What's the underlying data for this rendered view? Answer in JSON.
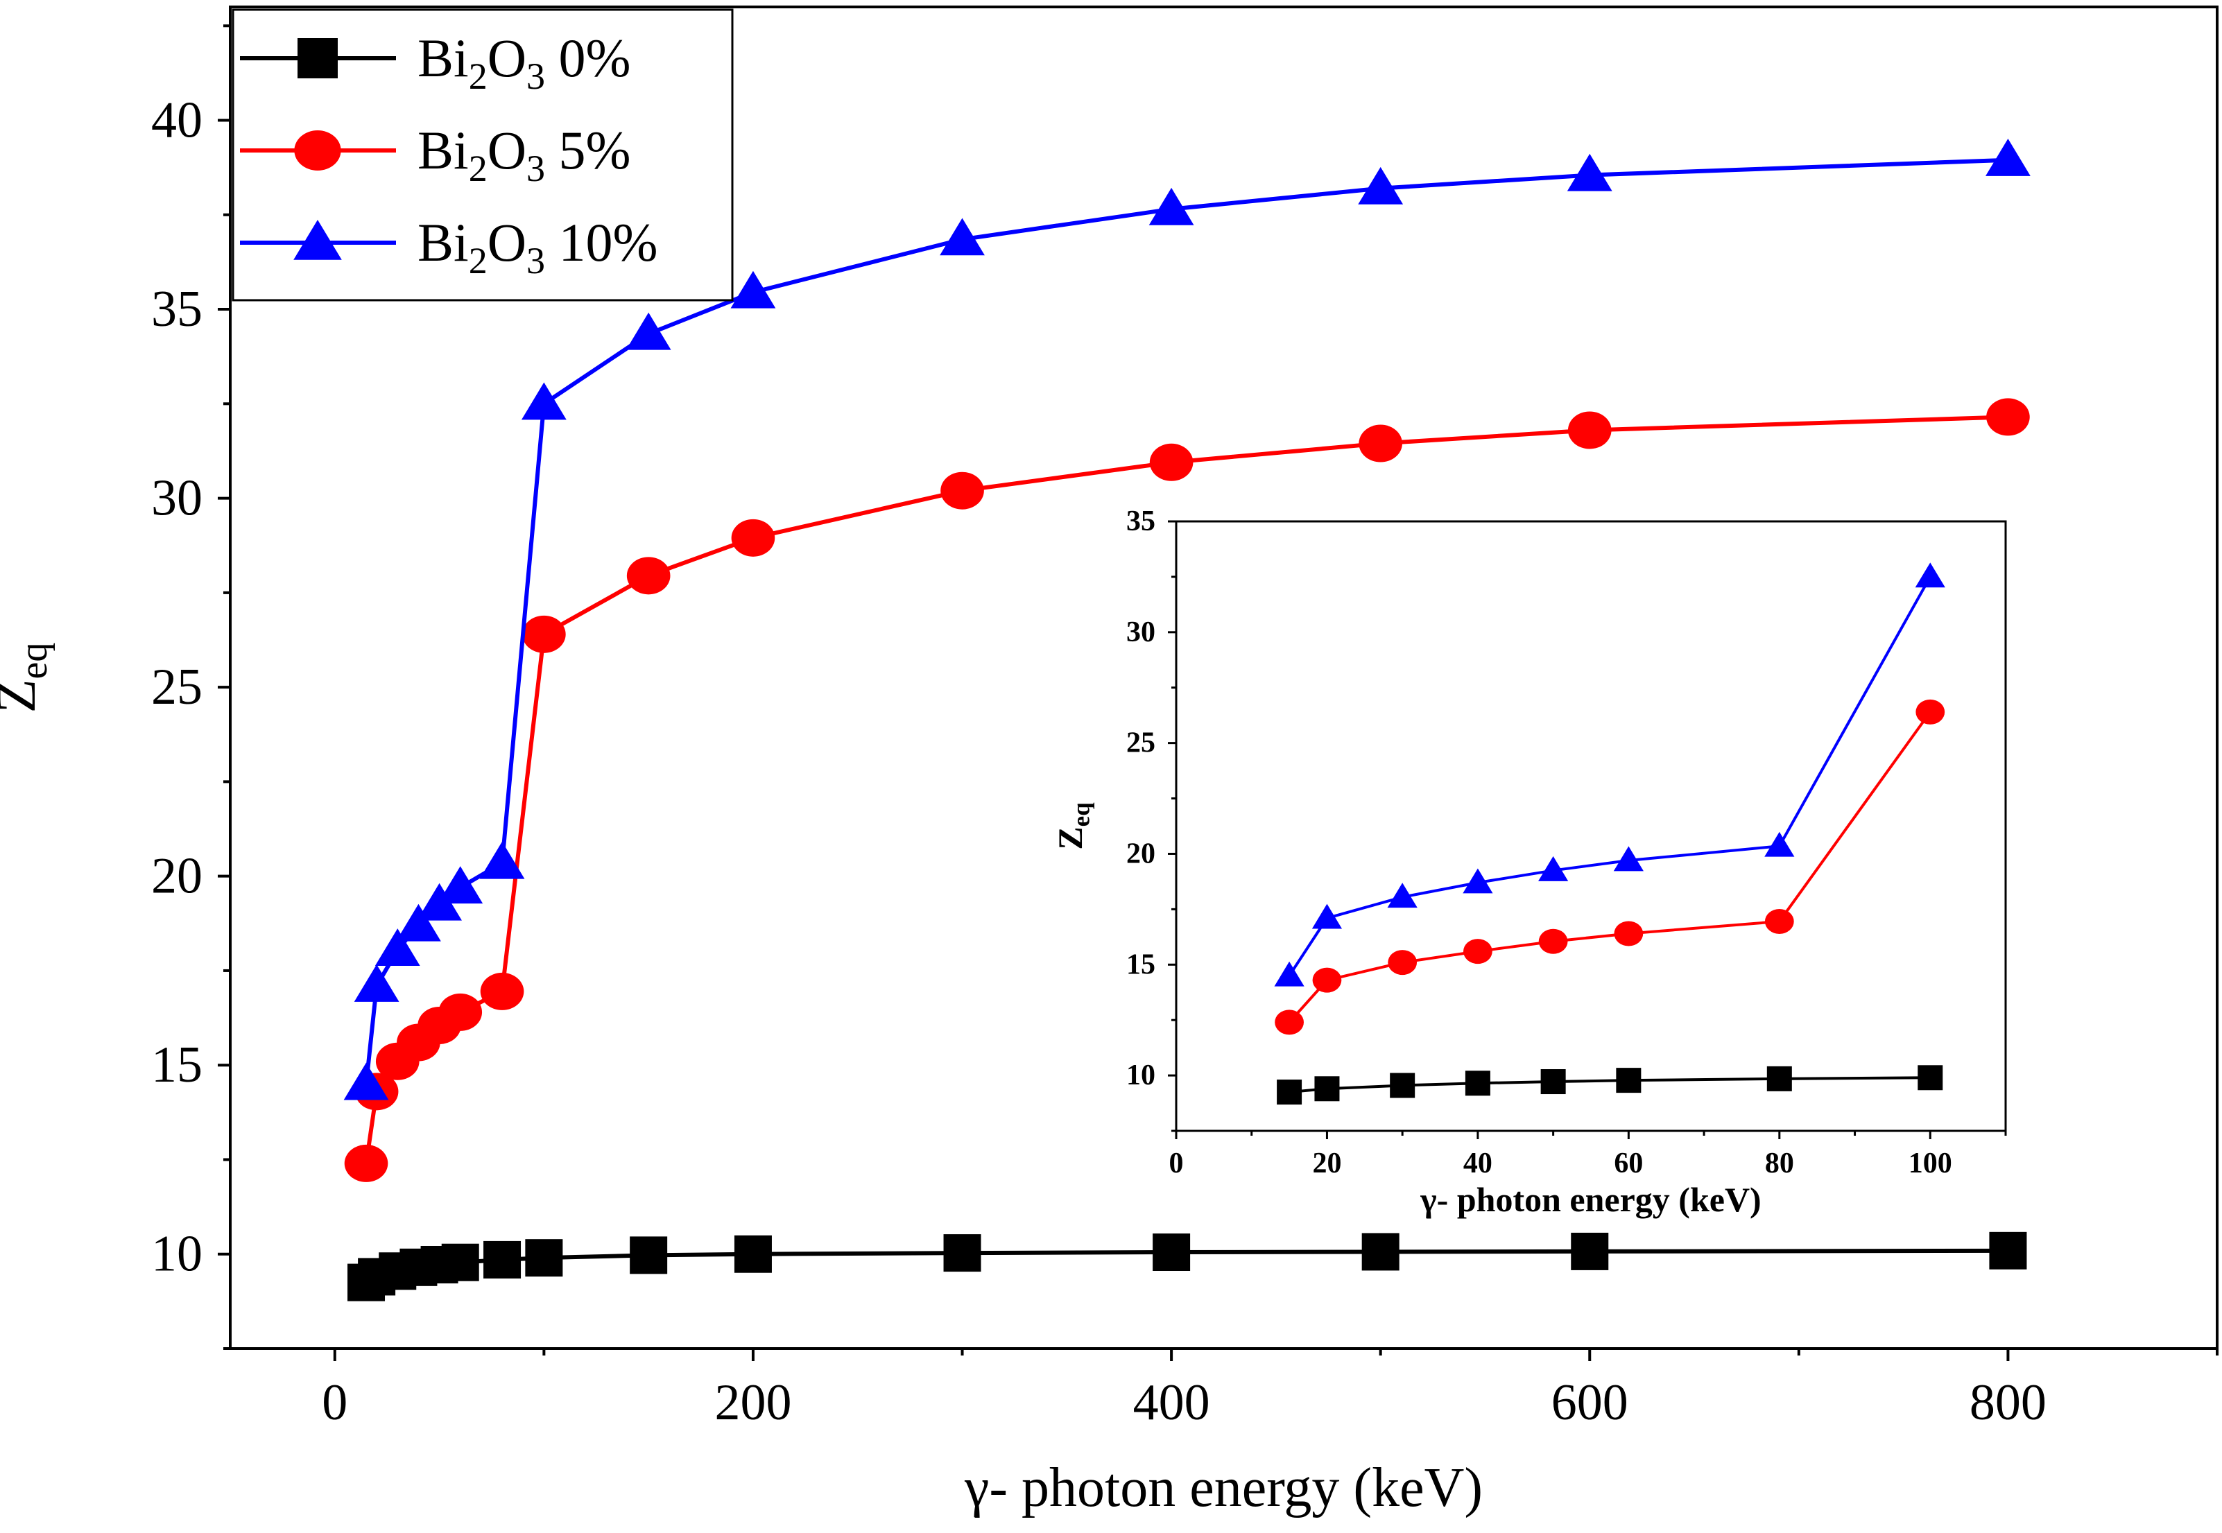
{
  "chart_data": [
    {
      "id": "main",
      "type": "line",
      "title": "",
      "xlabel": "γ- photon energy (keV)",
      "ylabel": "Z",
      "ylabel_subscript": "eq",
      "xlim": [
        -50,
        900
      ],
      "ylim": [
        7.5,
        43
      ],
      "xticks": [
        0,
        200,
        400,
        600,
        800
      ],
      "xtick_labels": [
        "0",
        "200",
        "400",
        "600",
        "800"
      ],
      "yticks": [
        10,
        15,
        20,
        25,
        30,
        35,
        40
      ],
      "ytick_labels": [
        "10",
        "15",
        "20",
        "25",
        "30",
        "35",
        "40"
      ],
      "grid": false,
      "legend_position": "top-left",
      "x": [
        15,
        20,
        30,
        40,
        50,
        60,
        80,
        100,
        150,
        200,
        300,
        400,
        500,
        600,
        800
      ],
      "series": [
        {
          "name": "Bi2O3 0%",
          "legend_parts": [
            "Bi",
            "2",
            "O",
            "3",
            " 0%"
          ],
          "color": "#000000",
          "marker": "square",
          "values": [
            9.25,
            9.4,
            9.55,
            9.65,
            9.72,
            9.78,
            9.85,
            9.9,
            9.97,
            10.0,
            10.03,
            10.05,
            10.06,
            10.07,
            10.09
          ]
        },
        {
          "name": "Bi2O3 5%",
          "legend_parts": [
            "Bi",
            "2",
            "O",
            "3",
            " 5%"
          ],
          "color": "#ff0000",
          "marker": "circle",
          "values": [
            12.4,
            14.3,
            15.1,
            15.6,
            16.05,
            16.4,
            16.95,
            26.4,
            27.95,
            28.95,
            30.2,
            30.95,
            31.45,
            31.8,
            32.15
          ]
        },
        {
          "name": "Bi2O3 10%",
          "legend_parts": [
            "Bi",
            "2",
            "O",
            "3",
            " 10%"
          ],
          "color": "#0000ff",
          "marker": "triangle",
          "values": [
            14.5,
            17.1,
            18.05,
            18.7,
            19.25,
            19.7,
            20.35,
            32.5,
            34.35,
            35.45,
            36.85,
            37.65,
            38.2,
            38.55,
            38.95
          ]
        }
      ]
    },
    {
      "id": "inset",
      "type": "line",
      "title": "",
      "xlabel": "γ- photon energy (keV)",
      "ylabel": "Z",
      "ylabel_subscript": "eq",
      "xlim": [
        0,
        110
      ],
      "ylim": [
        7.5,
        35
      ],
      "xticks": [
        0,
        20,
        40,
        60,
        80,
        100
      ],
      "xtick_labels": [
        "0",
        "20",
        "40",
        "60",
        "80",
        "100"
      ],
      "yticks": [
        10,
        15,
        20,
        25,
        30,
        35
      ],
      "ytick_labels": [
        "10",
        "15",
        "20",
        "25",
        "30",
        "35"
      ],
      "grid": false,
      "x": [
        15,
        20,
        30,
        40,
        50,
        60,
        80,
        100
      ],
      "series": [
        {
          "name": "Bi2O3 0%",
          "color": "#000000",
          "marker": "square",
          "values": [
            9.25,
            9.4,
            9.55,
            9.65,
            9.72,
            9.78,
            9.85,
            9.9
          ]
        },
        {
          "name": "Bi2O3 5%",
          "color": "#ff0000",
          "marker": "circle",
          "values": [
            12.4,
            14.3,
            15.1,
            15.6,
            16.05,
            16.4,
            16.95,
            26.4
          ]
        },
        {
          "name": "Bi2O3 10%",
          "color": "#0000ff",
          "marker": "triangle",
          "values": [
            14.5,
            17.1,
            18.05,
            18.7,
            19.25,
            19.7,
            20.35,
            32.5
          ]
        }
      ]
    }
  ]
}
